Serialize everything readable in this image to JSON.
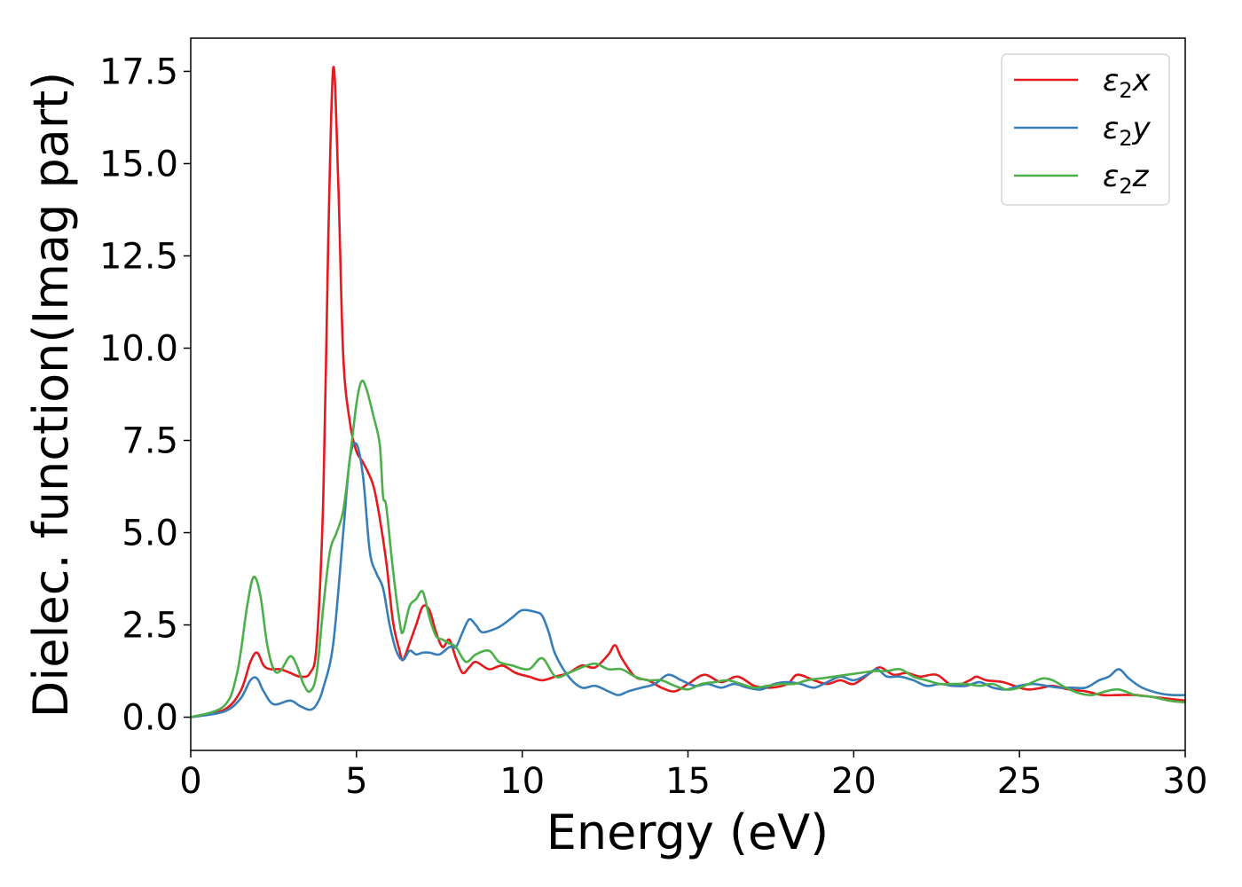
{
  "chart_data": {
    "type": "line",
    "xlabel": "Energy (eV)",
    "ylabel": "Dielec. function(Imag part)",
    "xlim": [
      0,
      30
    ],
    "ylim": [
      -0.9,
      18.4
    ],
    "x_ticks": [
      0,
      5,
      10,
      15,
      20,
      25,
      30
    ],
    "x_tick_labels": [
      "0",
      "5",
      "10",
      "15",
      "20",
      "25",
      "30"
    ],
    "y_ticks": [
      0.0,
      2.5,
      5.0,
      7.5,
      10.0,
      12.5,
      15.0,
      17.5
    ],
    "y_tick_labels": [
      "0.0",
      "2.5",
      "5.0",
      "7.5",
      "10.0",
      "12.5",
      "15.0",
      "17.5"
    ],
    "grid": false,
    "legend": {
      "position": "top-right"
    },
    "series": [
      {
        "name": "ε₂x",
        "legend_main": "ε",
        "legend_sub": "2",
        "legend_suffix": "x",
        "color": "#e41a1c",
        "points": [
          [
            0,
            0
          ],
          [
            1,
            0.2
          ],
          [
            1.5,
            0.7
          ],
          [
            1.8,
            1.5
          ],
          [
            2,
            1.75
          ],
          [
            2.2,
            1.4
          ],
          [
            2.4,
            1.3
          ],
          [
            2.7,
            1.3
          ],
          [
            3,
            1.2
          ],
          [
            3.3,
            1.1
          ],
          [
            3.6,
            1.2
          ],
          [
            3.8,
            2
          ],
          [
            4,
            6
          ],
          [
            4.15,
            13
          ],
          [
            4.3,
            17.6
          ],
          [
            4.45,
            14.5
          ],
          [
            4.6,
            9.8
          ],
          [
            4.8,
            8
          ],
          [
            5,
            7.2
          ],
          [
            5.2,
            6.9
          ],
          [
            5.5,
            6.3
          ],
          [
            5.7,
            5.4
          ],
          [
            5.9,
            4.2
          ],
          [
            6.1,
            2.6
          ],
          [
            6.3,
            1.8
          ],
          [
            6.4,
            1.55
          ],
          [
            6.6,
            2
          ],
          [
            6.8,
            2.5
          ],
          [
            7,
            3
          ],
          [
            7.2,
            2.9
          ],
          [
            7.4,
            2.3
          ],
          [
            7.6,
            1.9
          ],
          [
            7.8,
            2.1
          ],
          [
            8,
            1.6
          ],
          [
            8.2,
            1.2
          ],
          [
            8.4,
            1.35
          ],
          [
            8.6,
            1.5
          ],
          [
            9,
            1.3
          ],
          [
            9.4,
            1.4
          ],
          [
            9.8,
            1.2
          ],
          [
            10.2,
            1.1
          ],
          [
            10.6,
            1.0
          ],
          [
            11,
            1.1
          ],
          [
            11.4,
            1.2
          ],
          [
            11.8,
            1.4
          ],
          [
            12.2,
            1.35
          ],
          [
            12.6,
            1.7
          ],
          [
            12.8,
            1.95
          ],
          [
            13,
            1.6
          ],
          [
            13.4,
            1.1
          ],
          [
            13.8,
            1.0
          ],
          [
            14.2,
            0.8
          ],
          [
            14.6,
            0.7
          ],
          [
            15,
            0.9
          ],
          [
            15.5,
            1.15
          ],
          [
            16,
            0.95
          ],
          [
            16.5,
            1.1
          ],
          [
            17,
            0.85
          ],
          [
            17.5,
            0.8
          ],
          [
            18,
            0.9
          ],
          [
            18.3,
            1.15
          ],
          [
            18.8,
            1.0
          ],
          [
            19.2,
            0.9
          ],
          [
            19.6,
            1.0
          ],
          [
            20,
            0.9
          ],
          [
            20.5,
            1.2
          ],
          [
            20.8,
            1.35
          ],
          [
            21.2,
            1.15
          ],
          [
            21.6,
            1.2
          ],
          [
            22,
            1.1
          ],
          [
            22.5,
            1.15
          ],
          [
            23,
            0.85
          ],
          [
            23.5,
            1.0
          ],
          [
            23.7,
            1.1
          ],
          [
            24,
            1.0
          ],
          [
            24.5,
            0.95
          ],
          [
            25,
            0.8
          ],
          [
            25.3,
            0.75
          ],
          [
            25.7,
            0.8
          ],
          [
            26,
            0.85
          ],
          [
            26.5,
            0.75
          ],
          [
            27,
            0.7
          ],
          [
            27.5,
            0.6
          ],
          [
            28,
            0.6
          ],
          [
            28.5,
            0.6
          ],
          [
            29,
            0.55
          ],
          [
            29.5,
            0.5
          ],
          [
            30,
            0.45
          ]
        ]
      },
      {
        "name": "ε₂y",
        "legend_main": "ε",
        "legend_sub": "2",
        "legend_suffix": "y",
        "color": "#377eb8",
        "points": [
          [
            0,
            0
          ],
          [
            1,
            0.15
          ],
          [
            1.5,
            0.5
          ],
          [
            1.8,
            1.0
          ],
          [
            2,
            1.05
          ],
          [
            2.2,
            0.7
          ],
          [
            2.5,
            0.35
          ],
          [
            3,
            0.45
          ],
          [
            3.3,
            0.3
          ],
          [
            3.6,
            0.2
          ],
          [
            3.8,
            0.35
          ],
          [
            4,
            0.8
          ],
          [
            4.3,
            2
          ],
          [
            4.6,
            5
          ],
          [
            4.8,
            7
          ],
          [
            5,
            7.4
          ],
          [
            5.2,
            6.5
          ],
          [
            5.4,
            4.5
          ],
          [
            5.6,
            3.9
          ],
          [
            5.8,
            3.5
          ],
          [
            6,
            2.5
          ],
          [
            6.2,
            1.8
          ],
          [
            6.4,
            1.55
          ],
          [
            6.6,
            1.8
          ],
          [
            6.8,
            1.7
          ],
          [
            7,
            1.75
          ],
          [
            7.2,
            1.75
          ],
          [
            7.5,
            1.7
          ],
          [
            7.8,
            1.9
          ],
          [
            8,
            1.9
          ],
          [
            8.2,
            2.3
          ],
          [
            8.4,
            2.65
          ],
          [
            8.6,
            2.5
          ],
          [
            8.8,
            2.3
          ],
          [
            9.2,
            2.4
          ],
          [
            9.4,
            2.5
          ],
          [
            9.7,
            2.7
          ],
          [
            10,
            2.9
          ],
          [
            10.4,
            2.85
          ],
          [
            10.6,
            2.75
          ],
          [
            10.8,
            2.3
          ],
          [
            11,
            1.7
          ],
          [
            11.4,
            1.1
          ],
          [
            11.8,
            0.8
          ],
          [
            12.2,
            0.85
          ],
          [
            12.6,
            0.7
          ],
          [
            12.9,
            0.6
          ],
          [
            13.2,
            0.7
          ],
          [
            13.6,
            0.8
          ],
          [
            14,
            0.9
          ],
          [
            14.4,
            1.15
          ],
          [
            14.8,
            1.0
          ],
          [
            15.2,
            0.85
          ],
          [
            15.6,
            0.9
          ],
          [
            16,
            0.8
          ],
          [
            16.4,
            0.9
          ],
          [
            16.8,
            0.8
          ],
          [
            17.2,
            0.75
          ],
          [
            17.6,
            0.9
          ],
          [
            18,
            0.95
          ],
          [
            18.4,
            0.9
          ],
          [
            18.8,
            0.8
          ],
          [
            19.2,
            0.95
          ],
          [
            19.6,
            1.1
          ],
          [
            20,
            1.0
          ],
          [
            20.4,
            1.15
          ],
          [
            20.7,
            1.3
          ],
          [
            21,
            1.1
          ],
          [
            21.4,
            1.1
          ],
          [
            21.8,
            1.0
          ],
          [
            22.2,
            0.85
          ],
          [
            22.6,
            0.9
          ],
          [
            23,
            0.85
          ],
          [
            23.4,
            0.85
          ],
          [
            23.8,
            0.95
          ],
          [
            24.2,
            0.8
          ],
          [
            24.6,
            0.75
          ],
          [
            25,
            0.85
          ],
          [
            25.4,
            0.9
          ],
          [
            25.8,
            0.85
          ],
          [
            26.2,
            0.8
          ],
          [
            26.6,
            0.8
          ],
          [
            27,
            0.8
          ],
          [
            27.4,
            1.0
          ],
          [
            27.7,
            1.1
          ],
          [
            28,
            1.3
          ],
          [
            28.3,
            1.05
          ],
          [
            28.7,
            0.8
          ],
          [
            29.2,
            0.65
          ],
          [
            29.6,
            0.6
          ],
          [
            30,
            0.6
          ]
        ]
      },
      {
        "name": "ε₂z",
        "legend_main": "ε",
        "legend_sub": "2",
        "legend_suffix": "z",
        "color": "#4daf4a",
        "points": [
          [
            0,
            0
          ],
          [
            1,
            0.3
          ],
          [
            1.4,
            1.2
          ],
          [
            1.7,
            3.0
          ],
          [
            1.9,
            3.8
          ],
          [
            2.1,
            3.3
          ],
          [
            2.3,
            2.0
          ],
          [
            2.5,
            1.3
          ],
          [
            2.7,
            1.25
          ],
          [
            3,
            1.65
          ],
          [
            3.2,
            1.4
          ],
          [
            3.4,
            0.9
          ],
          [
            3.6,
            0.7
          ],
          [
            3.8,
            1.2
          ],
          [
            4,
            3.0
          ],
          [
            4.2,
            4.5
          ],
          [
            4.4,
            5.0
          ],
          [
            4.6,
            5.6
          ],
          [
            4.8,
            7.0
          ],
          [
            5,
            8.5
          ],
          [
            5.15,
            9.1
          ],
          [
            5.3,
            8.9
          ],
          [
            5.5,
            8.2
          ],
          [
            5.7,
            7.4
          ],
          [
            5.8,
            6.0
          ],
          [
            5.9,
            5.7
          ],
          [
            6.1,
            4.0
          ],
          [
            6.3,
            2.6
          ],
          [
            6.4,
            2.3
          ],
          [
            6.6,
            3.0
          ],
          [
            6.8,
            3.2
          ],
          [
            7,
            3.4
          ],
          [
            7.2,
            2.7
          ],
          [
            7.4,
            2.2
          ],
          [
            7.6,
            2.1
          ],
          [
            7.8,
            2.0
          ],
          [
            8,
            1.9
          ],
          [
            8.3,
            1.5
          ],
          [
            8.6,
            1.7
          ],
          [
            9,
            1.8
          ],
          [
            9.3,
            1.5
          ],
          [
            9.7,
            1.4
          ],
          [
            10.2,
            1.3
          ],
          [
            10.6,
            1.6
          ],
          [
            11,
            1.1
          ],
          [
            11.4,
            1.2
          ],
          [
            11.8,
            1.35
          ],
          [
            12.2,
            1.45
          ],
          [
            12.6,
            1.3
          ],
          [
            13,
            1.3
          ],
          [
            13.4,
            1.1
          ],
          [
            13.8,
            1.0
          ],
          [
            14.2,
            1.0
          ],
          [
            14.6,
            0.85
          ],
          [
            15,
            0.75
          ],
          [
            15.4,
            0.9
          ],
          [
            15.8,
            0.95
          ],
          [
            16.2,
            1.0
          ],
          [
            16.6,
            0.9
          ],
          [
            17,
            0.8
          ],
          [
            17.4,
            0.85
          ],
          [
            17.8,
            0.9
          ],
          [
            18.2,
            0.9
          ],
          [
            18.6,
            1.0
          ],
          [
            19,
            1.05
          ],
          [
            19.4,
            1.1
          ],
          [
            19.8,
            1.15
          ],
          [
            20.2,
            1.2
          ],
          [
            20.6,
            1.25
          ],
          [
            21,
            1.25
          ],
          [
            21.4,
            1.3
          ],
          [
            21.8,
            1.1
          ],
          [
            22.2,
            1.0
          ],
          [
            22.6,
            0.9
          ],
          [
            23,
            0.9
          ],
          [
            23.4,
            0.9
          ],
          [
            23.8,
            0.85
          ],
          [
            24.2,
            0.9
          ],
          [
            24.6,
            0.75
          ],
          [
            25,
            0.8
          ],
          [
            25.4,
            0.95
          ],
          [
            25.7,
            1.05
          ],
          [
            26,
            1.0
          ],
          [
            26.4,
            0.8
          ],
          [
            26.8,
            0.65
          ],
          [
            27.2,
            0.6
          ],
          [
            27.6,
            0.7
          ],
          [
            28,
            0.75
          ],
          [
            28.5,
            0.6
          ],
          [
            29,
            0.55
          ],
          [
            29.5,
            0.45
          ],
          [
            30,
            0.4
          ]
        ]
      }
    ]
  }
}
